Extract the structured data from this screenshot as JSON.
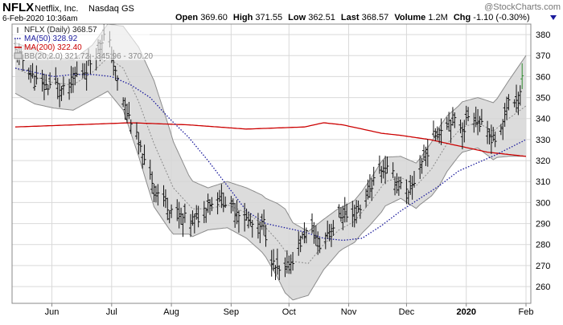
{
  "header": {
    "symbol": "NFLX",
    "company": "Netflix, Inc.",
    "exchange": "Nasdaq GS",
    "date": "6-Feb-2020 10:36am",
    "watermark": "@StockCharts.com",
    "quote": {
      "open_label": "Open",
      "open": "369.60",
      "high_label": "High",
      "high": "371.55",
      "low_label": "Low",
      "low": "362.51",
      "last_label": "Last",
      "last": "368.57",
      "volume_label": "Volume",
      "volume": "1.2M",
      "chg_label": "Chg",
      "chg": "-1.10 (-0.30%)"
    }
  },
  "legend": [
    {
      "text": "NFLX (Daily) 368.57",
      "color": "#222222",
      "swatch": "bar"
    },
    {
      "text": "MA(50) 328.92",
      "color": "#1a1a9c",
      "swatch": "dots"
    },
    {
      "text": "MA(200) 322.40",
      "color": "#cc0000",
      "swatch": "line"
    },
    {
      "text": "BB(20,2.0) 321.72 - 345.96 - 370.20",
      "color": "#888888",
      "swatch": "box"
    }
  ],
  "colors": {
    "price_bar": "#111111",
    "last_bars": "#2e8b2e",
    "ma50": "#1a1a9c",
    "ma200": "#cc0000",
    "bb_fill": "#d6d6d6",
    "bb_edge": "#8c8c8c",
    "bb_mid": "#8c8c8c",
    "grid": "#d9d9d9",
    "chg_arrow": "#1a1a9c"
  },
  "chart_data": {
    "type": "ohlc",
    "ylim": [
      252,
      385
    ],
    "yticks": [
      260,
      270,
      280,
      290,
      300,
      310,
      320,
      330,
      340,
      350,
      360,
      370,
      380
    ],
    "xticks": [
      {
        "label": "Jun",
        "day": 19,
        "bold": false
      },
      {
        "label": "Jul",
        "day": 50,
        "bold": false
      },
      {
        "label": "Aug",
        "day": 81,
        "bold": false
      },
      {
        "label": "Sep",
        "day": 112,
        "bold": false
      },
      {
        "label": "Oct",
        "day": 142,
        "bold": false
      },
      {
        "label": "Nov",
        "day": 173,
        "bold": false
      },
      {
        "label": "Dec",
        "day": 203,
        "bold": false
      },
      {
        "label": "2020",
        "day": 234,
        "bold": true
      },
      {
        "label": "Feb",
        "day": 265,
        "bold": false
      }
    ],
    "price_anchors": [
      [
        0,
        372
      ],
      [
        5,
        367
      ],
      [
        10,
        358
      ],
      [
        15,
        355
      ],
      [
        20,
        357
      ],
      [
        26,
        352
      ],
      [
        31,
        360
      ],
      [
        36,
        363
      ],
      [
        41,
        370
      ],
      [
        44,
        377
      ],
      [
        46,
        379
      ],
      [
        49,
        375
      ],
      [
        52,
        361
      ],
      [
        55,
        352
      ],
      [
        58,
        342
      ],
      [
        61,
        338
      ],
      [
        64,
        327
      ],
      [
        67,
        318
      ],
      [
        70,
        312
      ],
      [
        74,
        305
      ],
      [
        78,
        300
      ],
      [
        82,
        296
      ],
      [
        86,
        293
      ],
      [
        90,
        291
      ],
      [
        93,
        292
      ],
      [
        97,
        294
      ],
      [
        100,
        302
      ],
      [
        103,
        298
      ],
      [
        106,
        303
      ],
      [
        109,
        300
      ],
      [
        112,
        298
      ],
      [
        116,
        296
      ],
      [
        119,
        293
      ],
      [
        122,
        290
      ],
      [
        126,
        287
      ],
      [
        129,
        290
      ],
      [
        131,
        280
      ],
      [
        134,
        270
      ],
      [
        138,
        265
      ],
      [
        142,
        270
      ],
      [
        146,
        277
      ],
      [
        150,
        285
      ],
      [
        154,
        287
      ],
      [
        158,
        279
      ],
      [
        162,
        286
      ],
      [
        166,
        290
      ],
      [
        170,
        295
      ],
      [
        174,
        291
      ],
      [
        178,
        297
      ],
      [
        182,
        302
      ],
      [
        186,
        311
      ],
      [
        190,
        316
      ],
      [
        194,
        315
      ],
      [
        197,
        311
      ],
      [
        201,
        307
      ],
      [
        204,
        303
      ],
      [
        207,
        310
      ],
      [
        210,
        318
      ],
      [
        214,
        325
      ],
      [
        218,
        333
      ],
      [
        222,
        337
      ],
      [
        226,
        340
      ],
      [
        230,
        337
      ],
      [
        233,
        336
      ],
      [
        236,
        344
      ],
      [
        240,
        339
      ],
      [
        243,
        334
      ],
      [
        246,
        332
      ],
      [
        249,
        330
      ],
      [
        251,
        329
      ],
      [
        254,
        342
      ],
      [
        256,
        350
      ],
      [
        258,
        348
      ],
      [
        260,
        346
      ],
      [
        262,
        354
      ],
      [
        264,
        368
      ],
      [
        265,
        370
      ]
    ],
    "ma50_anchors": [
      [
        0,
        364
      ],
      [
        10,
        362
      ],
      [
        20,
        360
      ],
      [
        30,
        361
      ],
      [
        40,
        361
      ],
      [
        50,
        360
      ],
      [
        60,
        356
      ],
      [
        70,
        350
      ],
      [
        80,
        340
      ],
      [
        90,
        331
      ],
      [
        100,
        320
      ],
      [
        110,
        308
      ],
      [
        120,
        296
      ],
      [
        130,
        290
      ],
      [
        140,
        288
      ],
      [
        150,
        286
      ],
      [
        160,
        283
      ],
      [
        170,
        282
      ],
      [
        180,
        283
      ],
      [
        190,
        289
      ],
      [
        200,
        296
      ],
      [
        210,
        302
      ],
      [
        220,
        308
      ],
      [
        230,
        315
      ],
      [
        240,
        319
      ],
      [
        250,
        323
      ],
      [
        265,
        330
      ]
    ],
    "ma200_anchors": [
      [
        0,
        336
      ],
      [
        30,
        337
      ],
      [
        60,
        338
      ],
      [
        90,
        337
      ],
      [
        120,
        335
      ],
      [
        150,
        336
      ],
      [
        160,
        338
      ],
      [
        170,
        337
      ],
      [
        180,
        335
      ],
      [
        190,
        333
      ],
      [
        200,
        332
      ],
      [
        215,
        330
      ],
      [
        230,
        327
      ],
      [
        245,
        324
      ],
      [
        265,
        322
      ]
    ],
    "bb_mid_anchors": [
      [
        0,
        364
      ],
      [
        10,
        360
      ],
      [
        20,
        357
      ],
      [
        30,
        356
      ],
      [
        40,
        362
      ],
      [
        48,
        369
      ],
      [
        56,
        364
      ],
      [
        64,
        348
      ],
      [
        72,
        328
      ],
      [
        82,
        307
      ],
      [
        92,
        297
      ],
      [
        100,
        297
      ],
      [
        110,
        299
      ],
      [
        120,
        295
      ],
      [
        128,
        290
      ],
      [
        136,
        282
      ],
      [
        144,
        272
      ],
      [
        152,
        271
      ],
      [
        160,
        280
      ],
      [
        168,
        287
      ],
      [
        176,
        291
      ],
      [
        184,
        300
      ],
      [
        192,
        310
      ],
      [
        200,
        312
      ],
      [
        208,
        308
      ],
      [
        216,
        316
      ],
      [
        224,
        328
      ],
      [
        232,
        336
      ],
      [
        240,
        338
      ],
      [
        248,
        334
      ],
      [
        256,
        340
      ],
      [
        265,
        346
      ]
    ],
    "bb_width_anchors": [
      [
        0,
        12
      ],
      [
        10,
        13
      ],
      [
        20,
        12
      ],
      [
        30,
        12
      ],
      [
        40,
        13
      ],
      [
        48,
        16
      ],
      [
        56,
        20
      ],
      [
        64,
        26
      ],
      [
        72,
        30
      ],
      [
        80,
        24
      ],
      [
        90,
        14
      ],
      [
        100,
        10
      ],
      [
        110,
        11
      ],
      [
        120,
        12
      ],
      [
        130,
        14
      ],
      [
        140,
        20
      ],
      [
        150,
        16
      ],
      [
        160,
        12
      ],
      [
        170,
        10
      ],
      [
        180,
        10
      ],
      [
        190,
        12
      ],
      [
        200,
        10
      ],
      [
        210,
        11
      ],
      [
        220,
        14
      ],
      [
        230,
        12
      ],
      [
        240,
        12
      ],
      [
        250,
        14
      ],
      [
        265,
        24
      ]
    ]
  }
}
